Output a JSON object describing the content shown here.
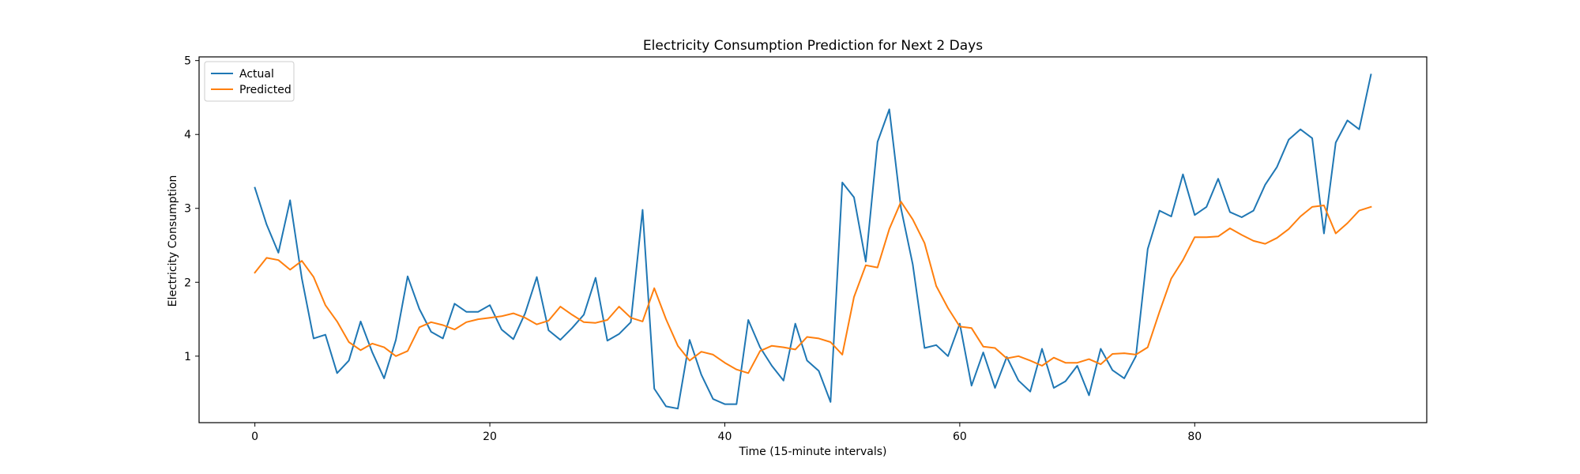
{
  "chart_data": {
    "type": "line",
    "title": "Electricity Consumption Prediction for Next 2 Days",
    "xlabel": "Time (15-minute intervals)",
    "ylabel": "Electricity Consumption",
    "xlim": [
      -4.75,
      99.75
    ],
    "ylim": [
      0.1,
      5.05
    ],
    "xticks": [
      0,
      20,
      40,
      60,
      80
    ],
    "yticks": [
      1,
      2,
      3,
      4,
      5
    ],
    "grid": false,
    "legend_position": "upper-left",
    "series": [
      {
        "name": "Actual",
        "color": "#1f77b4",
        "values": [
          3.28,
          2.78,
          2.4,
          3.11,
          2.05,
          1.24,
          1.29,
          0.77,
          0.94,
          1.47,
          1.05,
          0.7,
          1.22,
          2.08,
          1.64,
          1.33,
          1.24,
          1.71,
          1.6,
          1.6,
          1.69,
          1.36,
          1.23,
          1.58,
          2.07,
          1.35,
          1.22,
          1.38,
          1.56,
          2.06,
          1.21,
          1.3,
          1.46,
          2.98,
          0.56,
          0.32,
          0.29,
          1.22,
          0.75,
          0.42,
          0.35,
          0.35,
          1.49,
          1.12,
          0.87,
          0.67,
          1.44,
          0.94,
          0.8,
          0.38,
          3.35,
          3.15,
          2.28,
          3.9,
          4.34,
          3.0,
          2.24,
          1.11,
          1.15,
          1.0,
          1.44,
          0.6,
          1.05,
          0.57,
          0.99,
          0.67,
          0.52,
          1.1,
          0.57,
          0.66,
          0.87,
          0.47,
          1.1,
          0.81,
          0.7,
          1.0,
          2.45,
          2.97,
          2.89,
          3.46,
          2.91,
          3.02,
          3.4,
          2.95,
          2.88,
          2.97,
          3.32,
          3.56,
          3.93,
          4.07,
          3.95,
          2.66,
          3.89,
          4.19,
          4.07,
          4.81
        ]
      },
      {
        "name": "Predicted",
        "color": "#ff7f0e",
        "values": [
          2.13,
          2.33,
          2.3,
          2.17,
          2.29,
          2.07,
          1.69,
          1.47,
          1.19,
          1.08,
          1.17,
          1.12,
          1.0,
          1.07,
          1.39,
          1.46,
          1.42,
          1.36,
          1.46,
          1.5,
          1.52,
          1.54,
          1.58,
          1.52,
          1.43,
          1.48,
          1.67,
          1.56,
          1.46,
          1.45,
          1.49,
          1.67,
          1.52,
          1.47,
          1.92,
          1.5,
          1.14,
          0.94,
          1.06,
          1.02,
          0.91,
          0.82,
          0.77,
          1.07,
          1.14,
          1.12,
          1.09,
          1.26,
          1.24,
          1.19,
          1.02,
          1.8,
          2.23,
          2.2,
          2.72,
          3.09,
          2.85,
          2.53,
          1.95,
          1.65,
          1.4,
          1.38,
          1.13,
          1.11,
          0.97,
          1.0,
          0.94,
          0.87,
          0.98,
          0.91,
          0.91,
          0.96,
          0.89,
          1.03,
          1.04,
          1.02,
          1.12,
          1.6,
          2.05,
          2.3,
          2.61,
          2.61,
          2.62,
          2.73,
          2.64,
          2.56,
          2.52,
          2.6,
          2.72,
          2.89,
          3.02,
          3.04,
          2.66,
          2.8,
          2.97,
          3.02
        ]
      }
    ]
  }
}
